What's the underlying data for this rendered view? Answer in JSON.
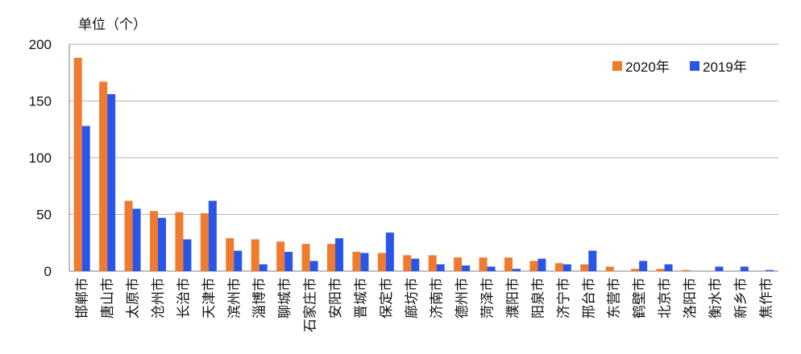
{
  "chart_data": {
    "type": "bar",
    "unit_label": "单位（个）",
    "categories": [
      "邯郸市",
      "唐山市",
      "太原市",
      "沧州市",
      "长治市",
      "天津市",
      "滨州市",
      "淄博市",
      "聊城市",
      "石家庄市",
      "安阳市",
      "晋城市",
      "保定市",
      "廊坊市",
      "济南市",
      "德州市",
      "菏泽市",
      "濮阳市",
      "阳泉市",
      "济宁市",
      "邢台市",
      "东营市",
      "鹤壁市",
      "北京市",
      "洛阳市",
      "衡水市",
      "新乡市",
      "焦作市"
    ],
    "series": [
      {
        "name": "2020年",
        "color": "#f07a2d",
        "values": [
          188,
          167,
          62,
          53,
          52,
          51,
          29,
          28,
          26,
          24,
          24,
          17,
          16,
          14,
          14,
          12,
          12,
          12,
          9,
          7,
          6,
          4,
          2,
          2,
          1,
          0,
          0,
          0
        ]
      },
      {
        "name": "2019年",
        "color": "#2a56e8",
        "values": [
          128,
          156,
          55,
          47,
          28,
          62,
          18,
          6,
          17,
          9,
          29,
          16,
          34,
          11,
          6,
          5,
          4,
          2,
          11,
          6,
          18,
          0,
          9,
          6,
          0,
          4,
          4,
          1
        ]
      }
    ],
    "ylim": [
      0,
      200
    ],
    "yticks": [
      0,
      50,
      100,
      150,
      200
    ],
    "grid": true,
    "legend": "top-right"
  }
}
